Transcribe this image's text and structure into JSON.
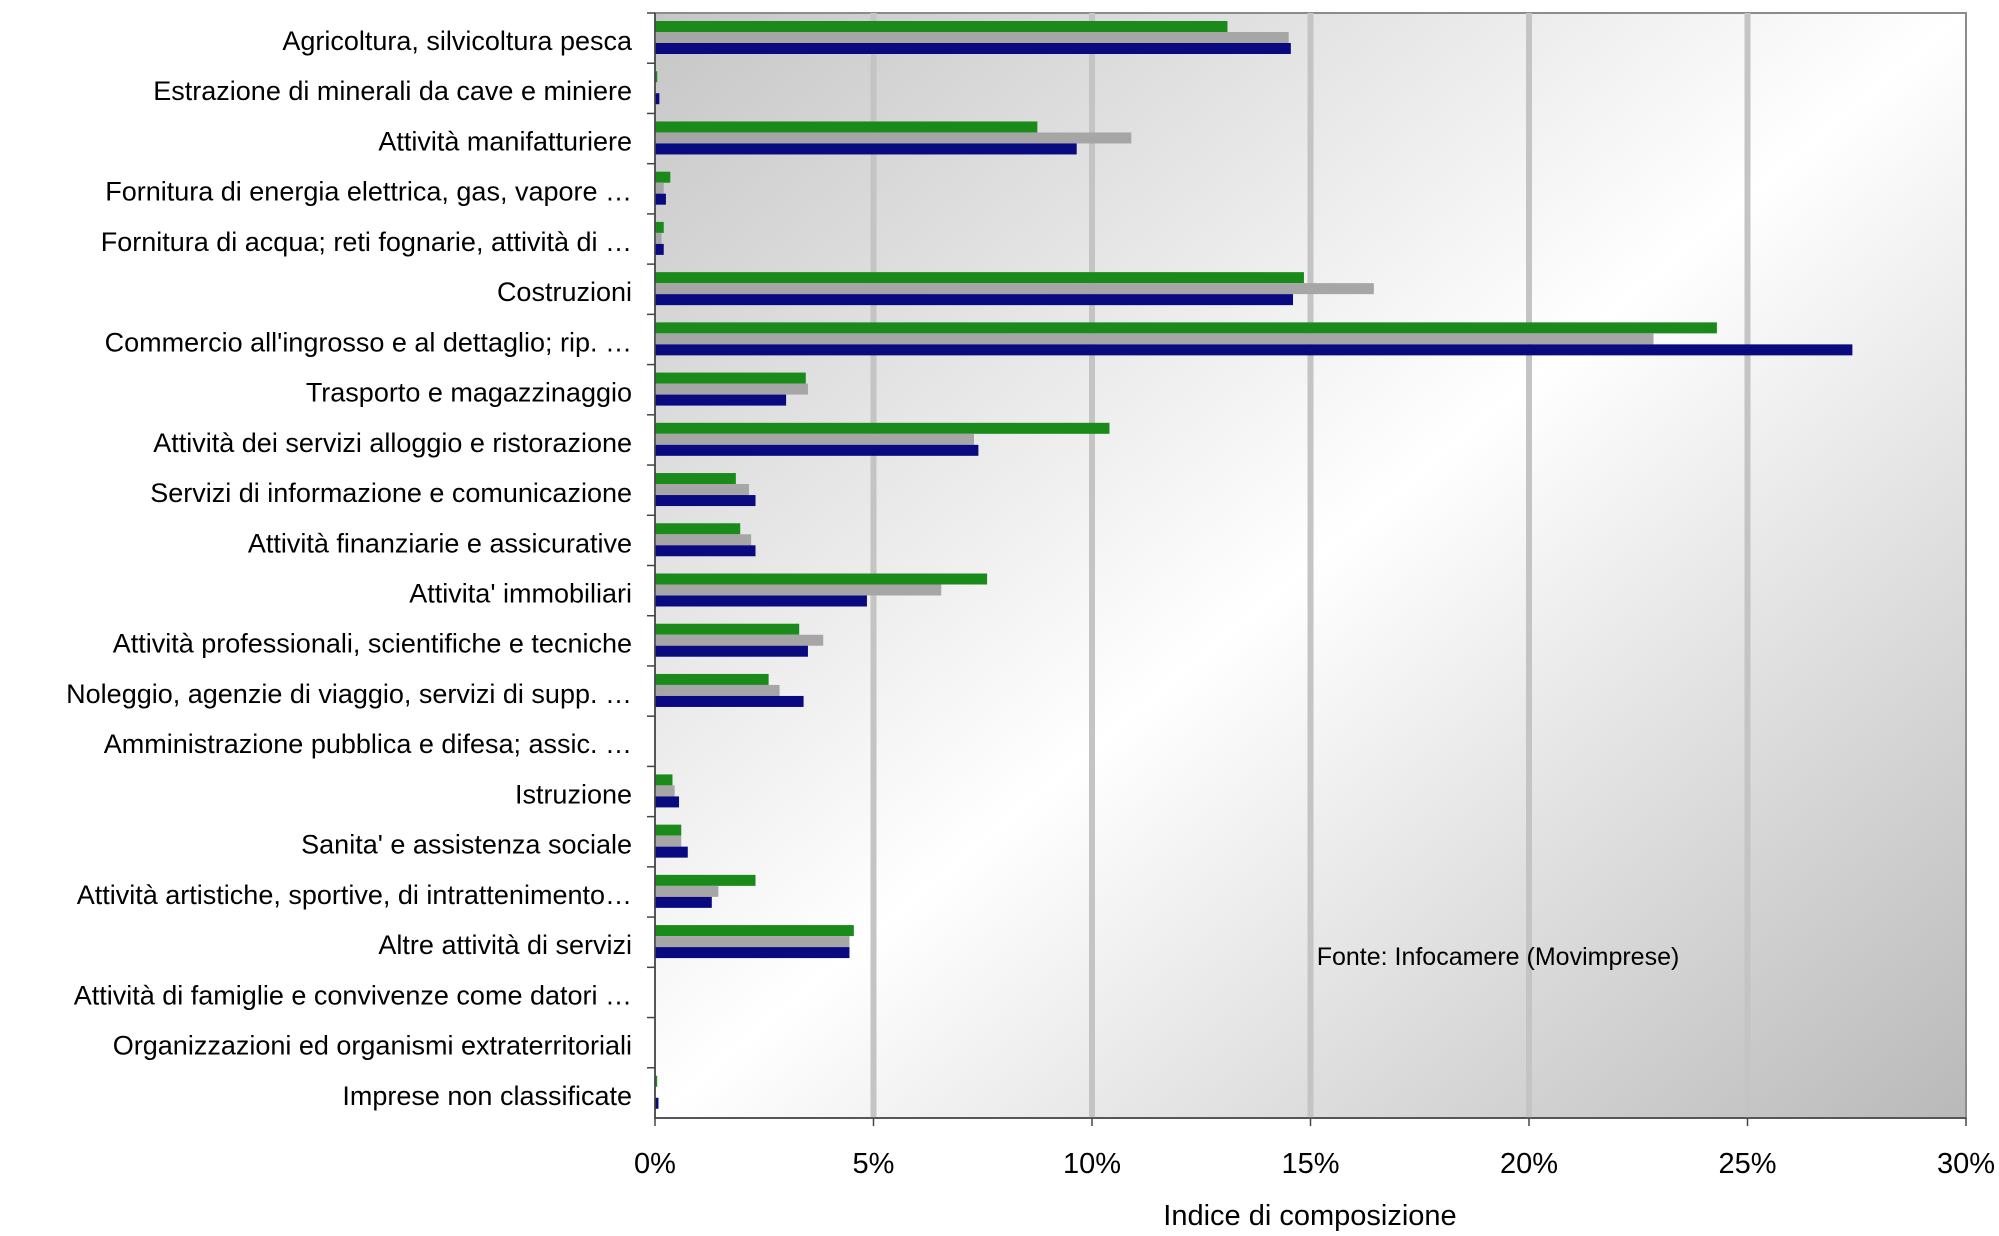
{
  "chart_data": {
    "type": "bar",
    "orientation": "horizontal",
    "xlabel": "Indice di composizione",
    "xlim": [
      0,
      30
    ],
    "xticks": [
      "0%",
      "5%",
      "10%",
      "15%",
      "20%",
      "25%",
      "30%"
    ],
    "grid": true,
    "source_note": "Fonte: Infocamere (Movimprese)",
    "categories": [
      "Agricoltura, silvicoltura pesca",
      "Estrazione di minerali da cave e miniere",
      "Attività manifatturiere",
      "Fornitura di energia elettrica, gas, vapore …",
      "Fornitura di acqua; reti fognarie, attività di …",
      "Costruzioni",
      "Commercio all'ingrosso e al dettaglio; rip. …",
      "Trasporto e magazzinaggio",
      "Attività dei servizi alloggio e ristorazione",
      "Servizi di informazione e comunicazione",
      "Attività finanziarie e assicurative",
      "Attivita' immobiliari",
      "Attività professionali, scientifiche e tecniche",
      "Noleggio, agenzie di viaggio, servizi di supp. …",
      "Amministrazione pubblica e difesa; assic. …",
      "Istruzione",
      "Sanita' e assistenza sociale",
      "Attività artistiche, sportive, di intrattenimento…",
      "Altre attività di servizi",
      "Attività di famiglie e convivenze come datori …",
      "Organizzazioni ed organismi extraterritoriali",
      "Imprese non classificate"
    ],
    "series": [
      {
        "color": "#1a8a1a",
        "values": [
          13.1,
          0.05,
          8.75,
          0.35,
          0.2,
          14.85,
          24.3,
          3.45,
          10.4,
          1.85,
          1.95,
          7.6,
          3.3,
          2.6,
          0.0,
          0.4,
          0.6,
          2.3,
          4.55,
          0.0,
          0.0,
          0.05
        ]
      },
      {
        "color": "#a6a6a6",
        "values": [
          14.5,
          0.02,
          10.9,
          0.2,
          0.15,
          16.45,
          22.85,
          3.5,
          7.3,
          2.15,
          2.2,
          6.55,
          3.85,
          2.85,
          0.0,
          0.45,
          0.6,
          1.45,
          4.45,
          0.0,
          0.0,
          0.02
        ]
      },
      {
        "color": "#0a0a80",
        "values": [
          14.55,
          0.1,
          9.65,
          0.25,
          0.2,
          14.6,
          27.4,
          3.0,
          7.4,
          2.3,
          2.3,
          4.85,
          3.5,
          3.4,
          0.0,
          0.55,
          0.75,
          1.3,
          4.45,
          0.0,
          0.0,
          0.08
        ]
      }
    ]
  }
}
